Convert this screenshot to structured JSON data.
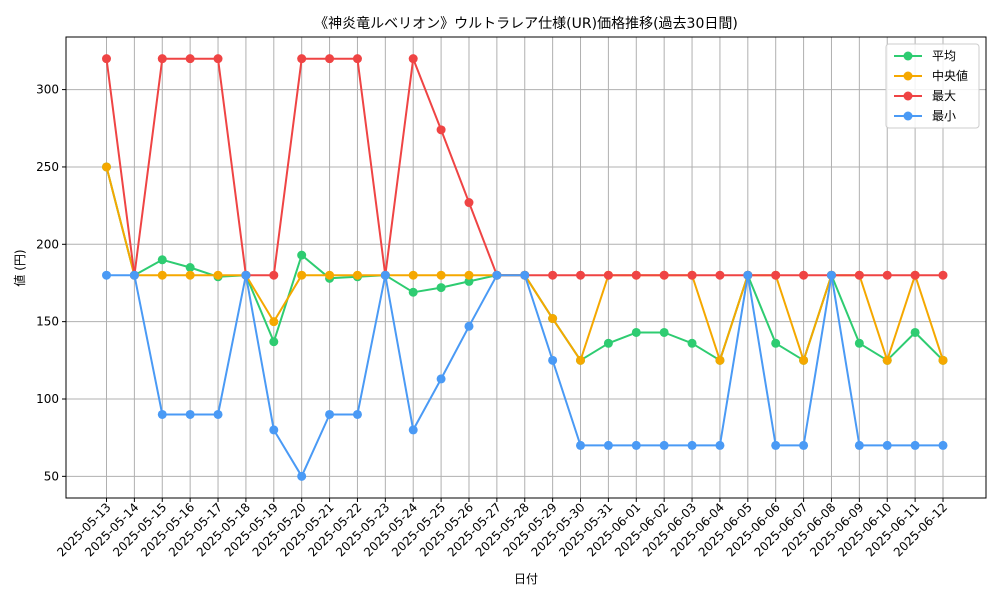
{
  "chart_data": {
    "type": "line",
    "title": "《神炎竜ルベリオン》ウルトラレア仕様(UR)価格推移(過去30日間)",
    "xlabel": "日付",
    "ylabel": "値 (円)",
    "ylim": [
      36,
      334
    ],
    "yticks": [
      50,
      100,
      150,
      200,
      250,
      300
    ],
    "grid": true,
    "legend_position": "top-right",
    "x": [
      "2025-05-13",
      "2025-05-14",
      "2025-05-15",
      "2025-05-16",
      "2025-05-17",
      "2025-05-18",
      "2025-05-19",
      "2025-05-20",
      "2025-05-21",
      "2025-05-22",
      "2025-05-23",
      "2025-05-24",
      "2025-05-25",
      "2025-05-26",
      "2025-05-27",
      "2025-05-28",
      "2025-05-29",
      "2025-05-30",
      "2025-05-31",
      "2025-06-01",
      "2025-06-02",
      "2025-06-03",
      "2025-06-04",
      "2025-06-05",
      "2025-06-06",
      "2025-06-07",
      "2025-06-08",
      "2025-06-09",
      "2025-06-10",
      "2025-06-11",
      "2025-06-12"
    ],
    "series": [
      {
        "name": "平均",
        "color": "#2ecc71",
        "values": [
          250,
          180,
          190,
          185,
          179,
          180,
          137,
          193,
          178,
          179,
          180,
          169,
          172,
          176,
          180,
          180,
          152,
          125,
          136,
          143,
          143,
          136,
          125,
          180,
          136,
          125,
          180,
          136,
          125,
          143,
          125
        ]
      },
      {
        "name": "中央値",
        "color": "#f5a800",
        "values": [
          250,
          180,
          180,
          180,
          180,
          180,
          150,
          180,
          180,
          180,
          180,
          180,
          180,
          180,
          180,
          180,
          152,
          125,
          180,
          180,
          180,
          180,
          125,
          180,
          180,
          125,
          180,
          180,
          125,
          180,
          125
        ]
      },
      {
        "name": "最大",
        "color": "#ef4444",
        "values": [
          320,
          180,
          320,
          320,
          320,
          180,
          180,
          320,
          320,
          320,
          180,
          320,
          274,
          227,
          180,
          180,
          180,
          180,
          180,
          180,
          180,
          180,
          180,
          180,
          180,
          180,
          180,
          180,
          180,
          180,
          180
        ]
      },
      {
        "name": "最小",
        "color": "#4a9af5",
        "values": [
          180,
          180,
          90,
          90,
          90,
          180,
          80,
          50,
          90,
          90,
          180,
          80,
          113,
          147,
          180,
          180,
          125,
          70,
          70,
          70,
          70,
          70,
          70,
          180,
          70,
          70,
          180,
          70,
          70,
          70,
          70
        ]
      }
    ]
  }
}
